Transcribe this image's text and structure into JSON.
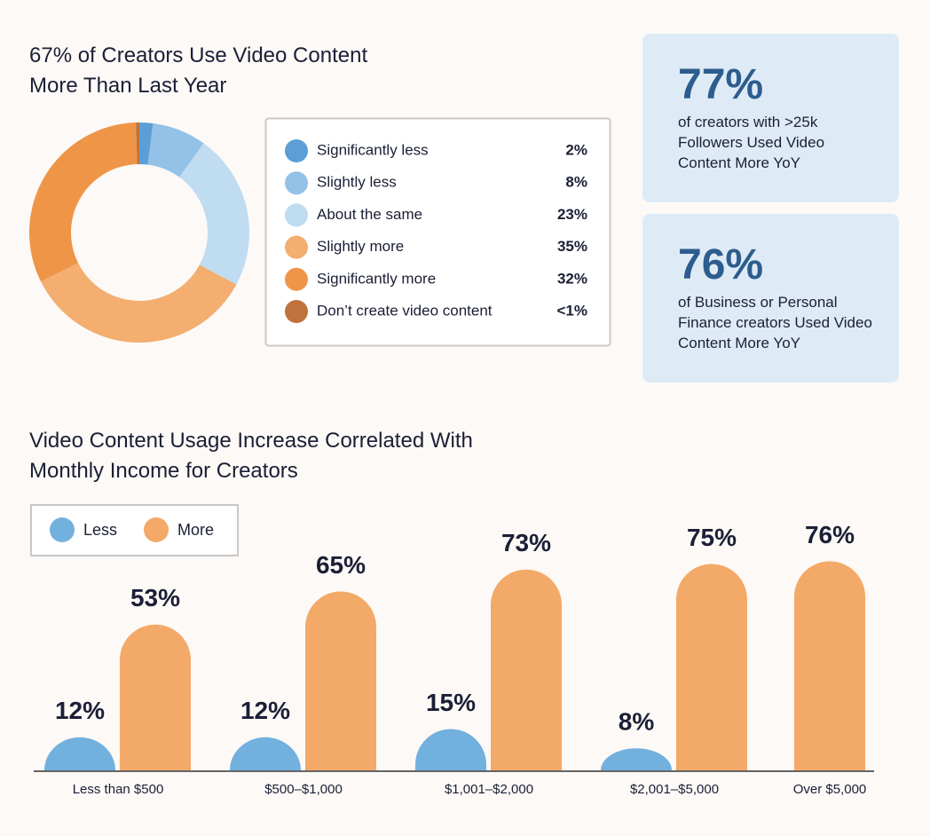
{
  "chart_data": [
    {
      "type": "donut",
      "title": "67% of Creators Use Video Content More Than Last Year",
      "categories": [
        "Significantly less",
        "Slightly less",
        "About the same",
        "Slightly more",
        "Significantly more",
        "Don’t create video content"
      ],
      "values": [
        2,
        8,
        23,
        35,
        32,
        0.5
      ],
      "value_labels": [
        "2%",
        "8%",
        "23%",
        "35%",
        "32%",
        "<1%"
      ],
      "colors": [
        "#5b9fd6",
        "#93c1e7",
        "#bfdcf1",
        "#f3ae70",
        "#ef9548",
        "#c0723c"
      ]
    },
    {
      "type": "bar",
      "title": "Video Content Usage Increase Correlated With Monthly Income for Creators",
      "categories": [
        "Less than $500",
        "$500–$1,000",
        "$1,001–$2,000",
        "$2,001–$5,000",
        "Over $5,000"
      ],
      "series": [
        {
          "name": "Less",
          "color": "#72b0de",
          "values": [
            12,
            12,
            15,
            8,
            null
          ],
          "value_labels": [
            "12%",
            "12%",
            "15%",
            "8%",
            null
          ]
        },
        {
          "name": "More",
          "color": "#f3a968",
          "values": [
            53,
            65,
            73,
            75,
            76
          ],
          "value_labels": [
            "53%",
            "65%",
            "73%",
            "75%",
            "76%"
          ]
        }
      ]
    }
  ],
  "stats": [
    {
      "value": "77%",
      "text": "of creators with >25k Followers Used Video Content More YoY"
    },
    {
      "value": "76%",
      "text": "of Business or Personal Finance creators Used Video Content More YoY"
    }
  ]
}
